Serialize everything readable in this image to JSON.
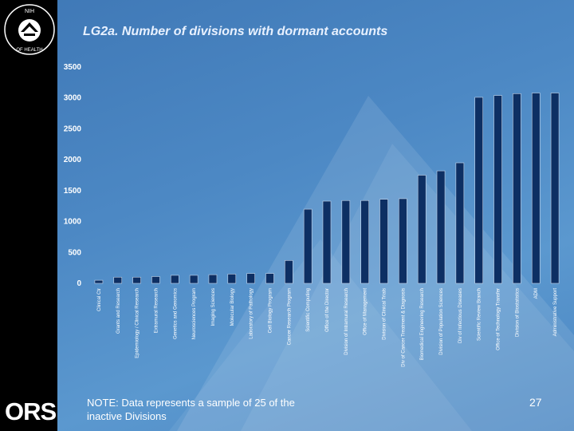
{
  "slide": {
    "title": "LG2a. Number of divisions with dormant accounts",
    "note": "NOTE: Data represents a sample of 25 of the inactive Divisions",
    "page_number": "27",
    "logo_text": "ORS",
    "seal_text": "NATIONAL INSTITUTES OF HEALTH"
  },
  "colors": {
    "bar": "#0d2f63",
    "sidebar": "#000000",
    "background": "#4c88c4"
  },
  "chart_data": {
    "type": "bar",
    "title": "LG2a. Number of divisions with dormant accounts",
    "xlabel": "",
    "ylabel": "",
    "ylim": [
      0,
      3500
    ],
    "yticks": [
      0,
      500,
      1000,
      1500,
      2000,
      2500,
      3000,
      3500
    ],
    "grid": false,
    "categories": [
      "Clinical Ctr",
      "Grants and Research",
      "Epidemiology / Clinical Research",
      "Extramural Research",
      "Genetics and Genomics",
      "Neurosciences Program",
      "Imaging Sciences",
      "Molecular Biology",
      "Laboratory of Pathology",
      "Cell Biology Program",
      "Cancer Research Program",
      "Scientific Computing",
      "Office of the Director",
      "Division of Intramural Research",
      "Office of Management",
      "Division of Clinical Trials",
      "Div of Cancer Treatment & Diagnosis",
      "Biomedical Engineering Research",
      "Division of Population Sciences",
      "Div of Infectious Diseases",
      "Scientific Review Branch",
      "Office of Technology Transfer",
      "Division of Biostatistics",
      "ADM",
      "Administrative Support"
    ],
    "values": [
      50,
      100,
      100,
      110,
      130,
      130,
      140,
      150,
      160,
      160,
      370,
      1200,
      1330,
      1340,
      1340,
      1360,
      1370,
      1750,
      1820,
      1950,
      3010,
      3040,
      3070,
      3080,
      3080
    ]
  }
}
